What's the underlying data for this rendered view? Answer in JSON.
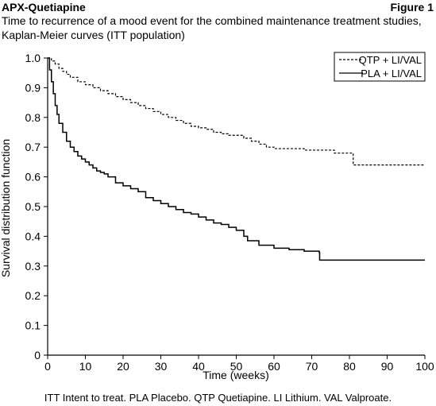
{
  "header": {
    "left": "APX-Quetiapine",
    "right": "Figure 1",
    "subtitle_line1": "Time to recurrence of a mood event for the combined maintenance treatment studies,",
    "subtitle_line2": "Kaplan-Meier curves (ITT population)"
  },
  "footnote": "ITT Intent to treat. PLA Placebo. QTP Quetiapine. LI Lithium. VAL Valproate.",
  "chart_data": {
    "type": "line",
    "xlabel": "Time (weeks)",
    "ylabel": "Survival distribution function",
    "xlim": [
      0,
      100
    ],
    "ylim": [
      0,
      1
    ],
    "xticks": [
      "0",
      "10",
      "20",
      "30",
      "40",
      "50",
      "60",
      "70",
      "80",
      "90",
      "100"
    ],
    "yticks": [
      "0",
      "0.1",
      "0.2",
      "0.3",
      "0.4",
      "0.5",
      "0.6",
      "0.7",
      "0.8",
      "0.9",
      "1.0"
    ],
    "legend_position": "top-right",
    "series": [
      {
        "name": "QTP + LI/VAL",
        "style": "dashed",
        "x": [
          0,
          1,
          2,
          3,
          4,
          5,
          6,
          8,
          10,
          12,
          14,
          16,
          18,
          20,
          22,
          24,
          26,
          28,
          30,
          32,
          34,
          36,
          38,
          40,
          42,
          44,
          46,
          48,
          50,
          52,
          54,
          56,
          58,
          60,
          62,
          64,
          66,
          68,
          70,
          72,
          74,
          76,
          78,
          80,
          81,
          90,
          100
        ],
        "y": [
          1.0,
          0.99,
          0.98,
          0.965,
          0.955,
          0.945,
          0.935,
          0.92,
          0.91,
          0.9,
          0.89,
          0.88,
          0.87,
          0.86,
          0.85,
          0.84,
          0.83,
          0.82,
          0.81,
          0.8,
          0.79,
          0.78,
          0.77,
          0.765,
          0.76,
          0.75,
          0.745,
          0.74,
          0.74,
          0.73,
          0.72,
          0.71,
          0.7,
          0.695,
          0.695,
          0.695,
          0.695,
          0.69,
          0.69,
          0.69,
          0.69,
          0.68,
          0.68,
          0.68,
          0.64,
          0.64,
          0.64
        ]
      },
      {
        "name": "PLA + LI/VAL",
        "style": "solid",
        "x": [
          0,
          0.5,
          1,
          1.5,
          2,
          2.5,
          3,
          4,
          5,
          6,
          7,
          8,
          9,
          10,
          11,
          12,
          13,
          14,
          15,
          16,
          18,
          20,
          22,
          24,
          26,
          28,
          30,
          32,
          34,
          36,
          38,
          40,
          42,
          44,
          46,
          48,
          50,
          52,
          53,
          56,
          60,
          64,
          68,
          72,
          72.1,
          80,
          90,
          100
        ],
        "y": [
          1.0,
          0.96,
          0.92,
          0.88,
          0.84,
          0.81,
          0.78,
          0.75,
          0.72,
          0.7,
          0.685,
          0.67,
          0.66,
          0.65,
          0.64,
          0.63,
          0.62,
          0.615,
          0.61,
          0.6,
          0.58,
          0.57,
          0.56,
          0.55,
          0.53,
          0.52,
          0.51,
          0.5,
          0.49,
          0.48,
          0.475,
          0.465,
          0.455,
          0.445,
          0.44,
          0.43,
          0.42,
          0.4,
          0.385,
          0.37,
          0.36,
          0.355,
          0.35,
          0.345,
          0.32,
          0.32,
          0.32,
          0.32
        ]
      }
    ]
  }
}
